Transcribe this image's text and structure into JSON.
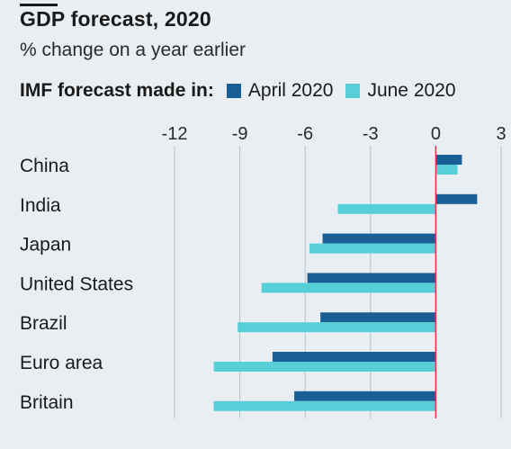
{
  "title": "GDP forecast, 2020",
  "subtitle": "% change on a year earlier",
  "legend": {
    "title": "IMF forecast made in:",
    "items": [
      {
        "label": "April 2020",
        "color": "#1a5e96"
      },
      {
        "label": "June 2020",
        "color": "#57cfd8"
      }
    ]
  },
  "chart_data": {
    "type": "bar",
    "orientation": "horizontal",
    "categories": [
      "China",
      "India",
      "Japan",
      "United States",
      "Brazil",
      "Euro area",
      "Britain"
    ],
    "series": [
      {
        "name": "April 2020",
        "color": "#1a5e96",
        "values": [
          1.2,
          1.9,
          -5.2,
          -5.9,
          -5.3,
          -7.5,
          -6.5
        ]
      },
      {
        "name": "June 2020",
        "color": "#57cfd8",
        "values": [
          1.0,
          -4.5,
          -5.8,
          -8.0,
          -9.1,
          -10.2,
          -10.2
        ]
      }
    ],
    "xlim": [
      -12,
      3
    ],
    "xticks": [
      "-12",
      "-9",
      "-6",
      "-3",
      "0",
      "3"
    ],
    "xtick_values": [
      -12,
      -9,
      -6,
      -3,
      0,
      3
    ],
    "grid": true,
    "zero_line_color": "#e0393e"
  }
}
